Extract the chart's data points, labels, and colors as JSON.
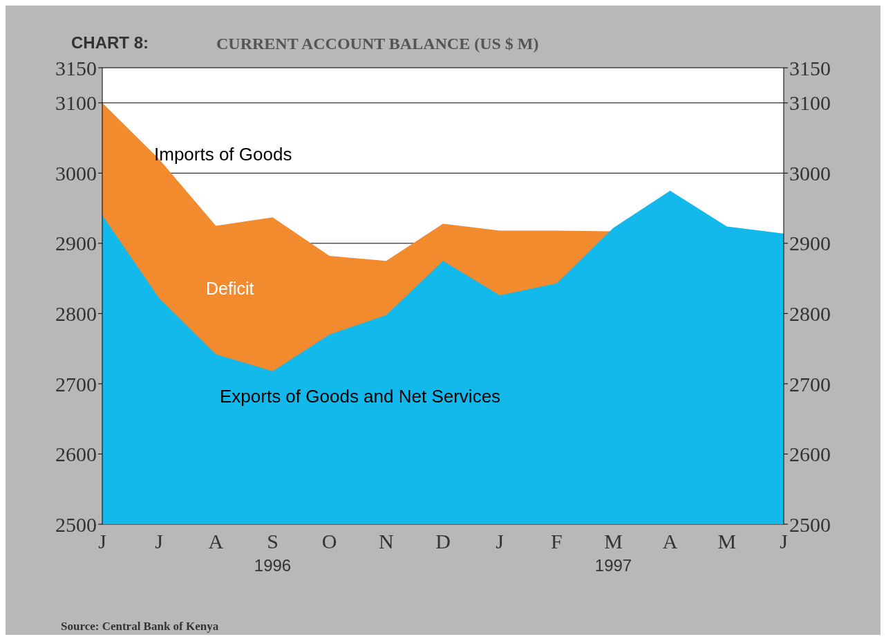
{
  "chart_data": {
    "type": "area",
    "subtitle": "CHART 8:",
    "title": "CURRENT ACCOUNT BALANCE (US $ M)",
    "categories": [
      "J",
      "J",
      "A",
      "S",
      "O",
      "N",
      "D",
      "J",
      "F",
      "M",
      "A",
      "M",
      "J"
    ],
    "series": [
      {
        "name": "Imports of Goods",
        "color": "#f28a2e",
        "values": [
          3100,
          3020,
          2925,
          2937,
          2882,
          2875,
          2928,
          2918,
          2918,
          2917,
          null,
          null,
          null
        ]
      },
      {
        "name": "Exports of Goods and Net Services",
        "color": "#14b9ec",
        "values": [
          2940,
          2822,
          2742,
          2718,
          2770,
          2798,
          2875,
          2826,
          2843,
          2922,
          2975,
          2924,
          2914
        ]
      }
    ],
    "annotations": [
      "Deficit",
      "Source: Central Bank of Kenya",
      "1996",
      "1997"
    ],
    "ylim": [
      2500,
      3150
    ],
    "yticks": [
      2500,
      2600,
      2700,
      2800,
      2900,
      3000,
      3100,
      3150
    ],
    "y2lim": [
      2500,
      3150
    ],
    "y2ticks": [
      2500,
      2600,
      2700,
      2800,
      2900,
      3000,
      3100,
      3150
    ],
    "grid": "y"
  }
}
